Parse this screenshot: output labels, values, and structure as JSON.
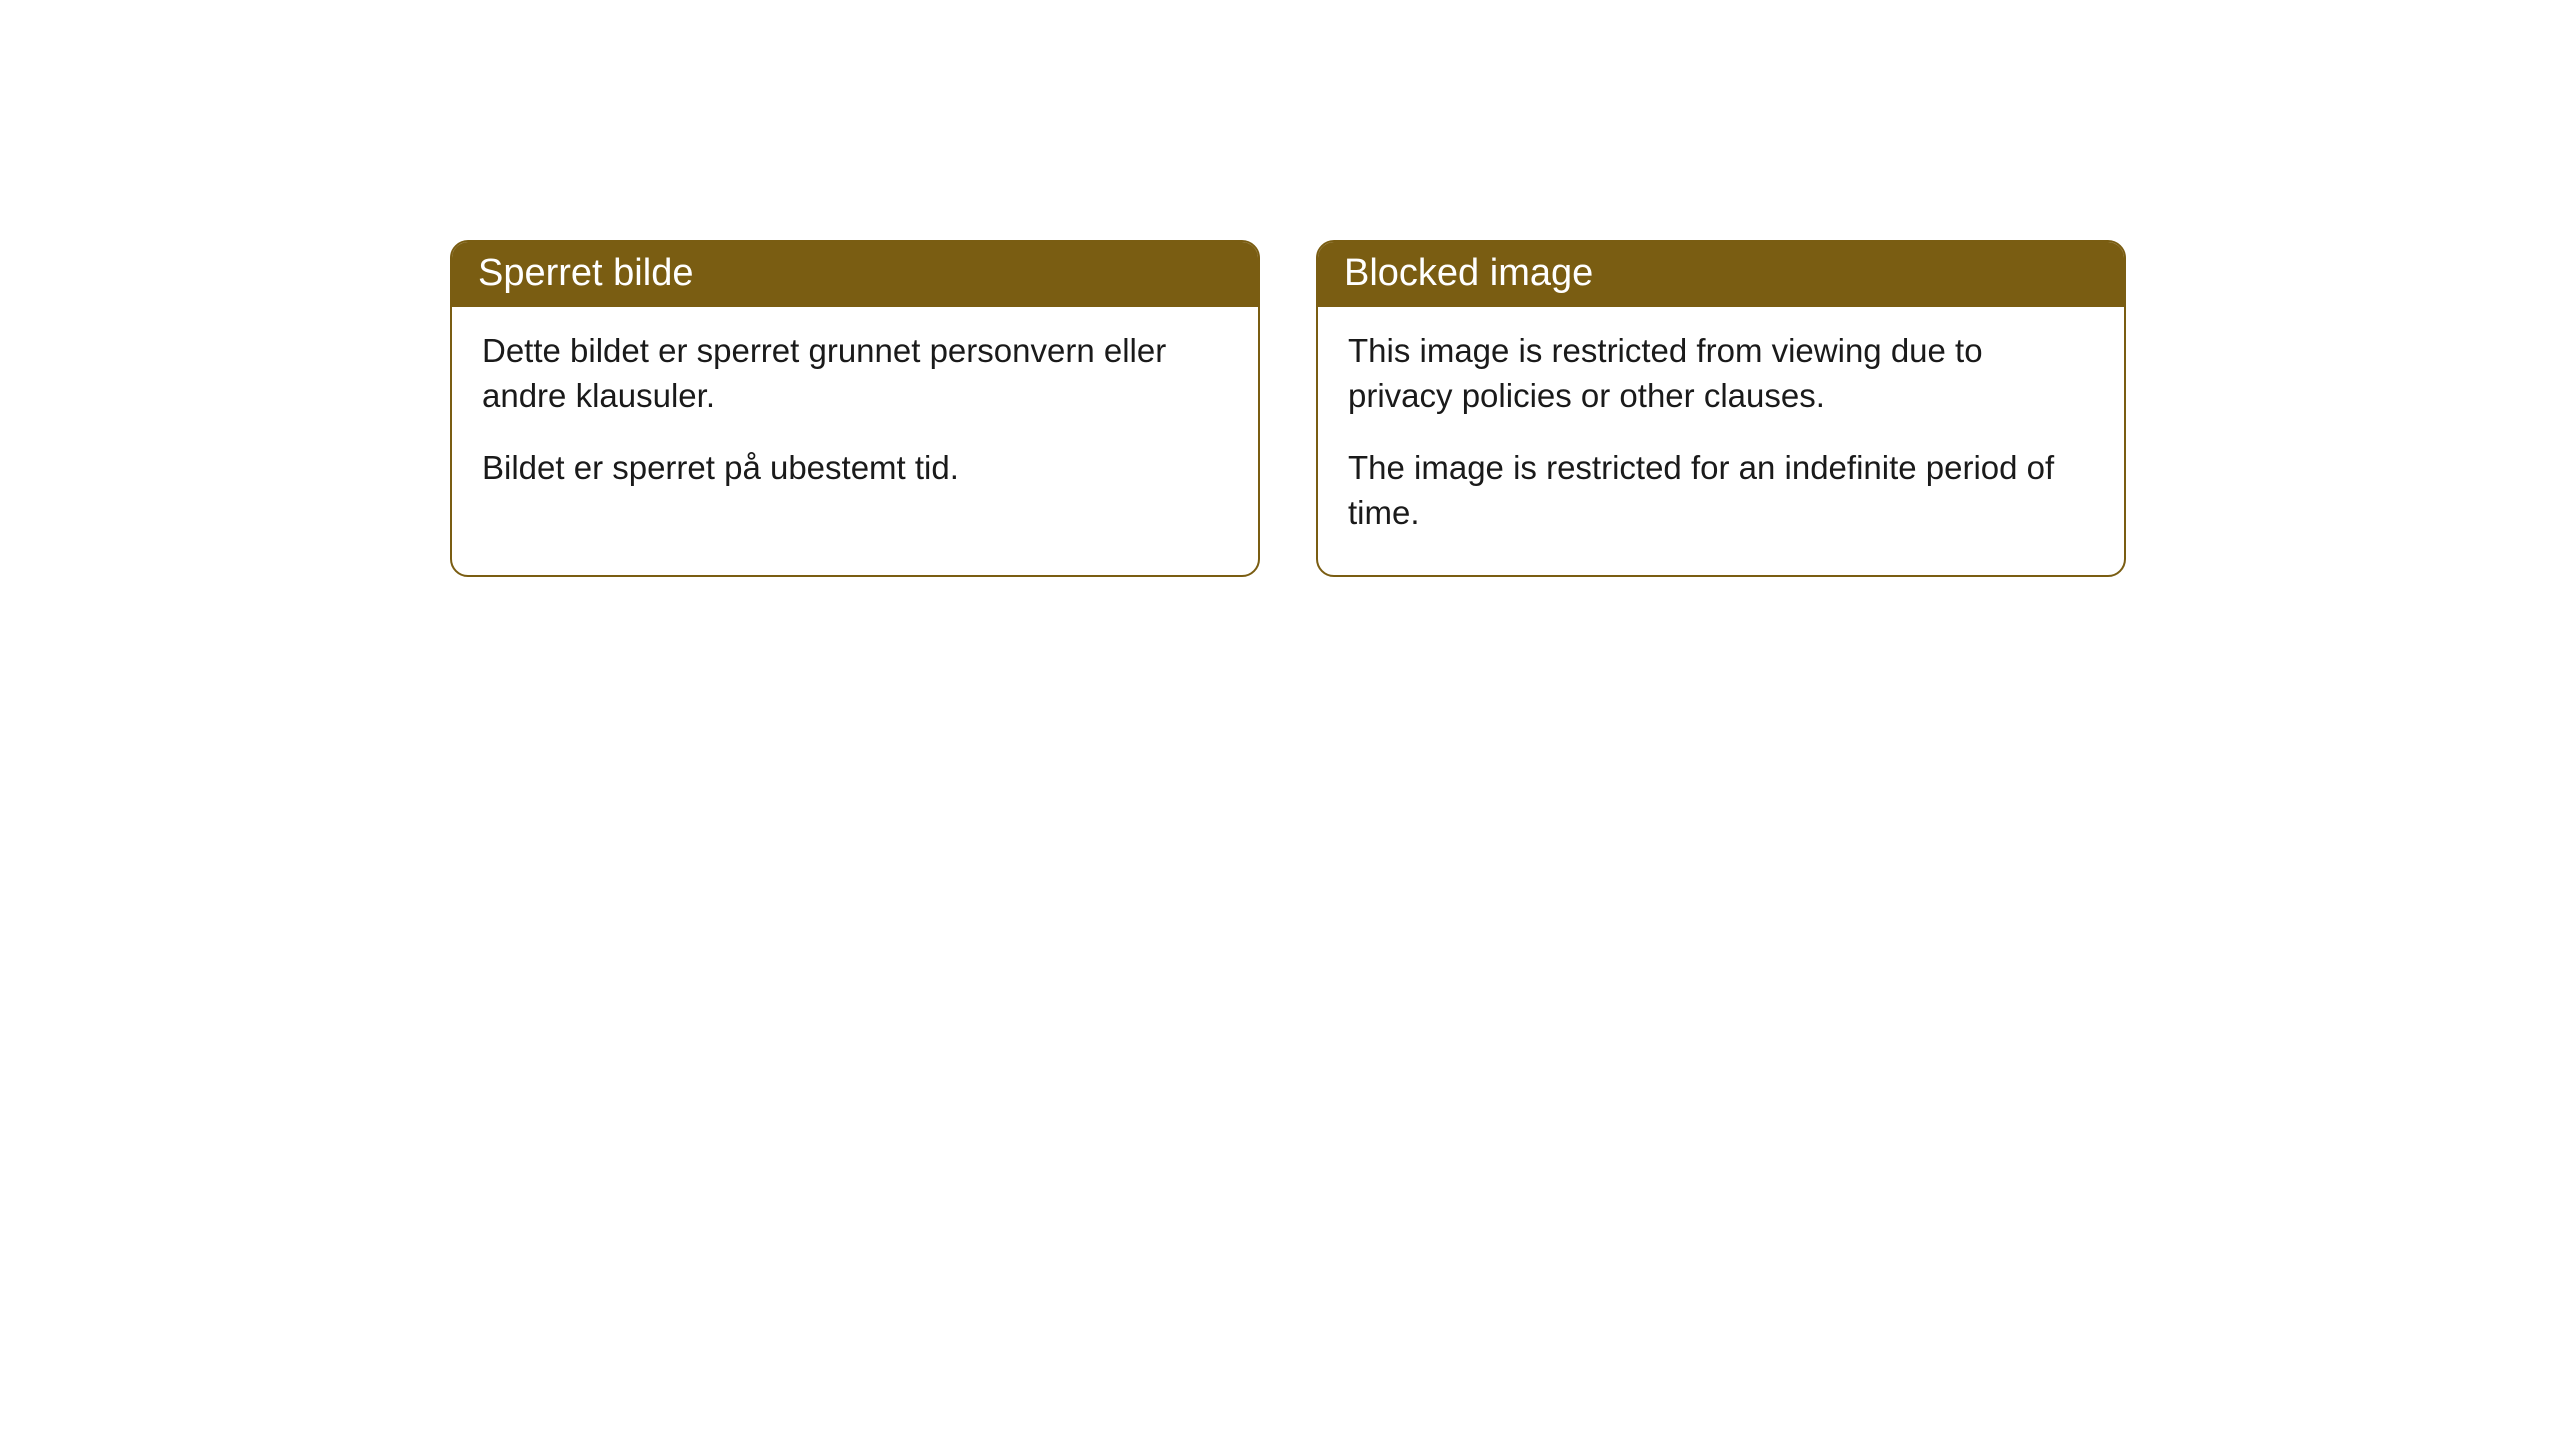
{
  "cards": [
    {
      "title": "Sperret bilde",
      "paragraph1": "Dette bildet er sperret grunnet personvern eller andre klausuler.",
      "paragraph2": "Bildet er sperret på ubestemt tid."
    },
    {
      "title": "Blocked image",
      "paragraph1": "This image is restricted from viewing due to privacy policies or other clauses.",
      "paragraph2": "The image is restricted for an indefinite period of time."
    }
  ],
  "styling": {
    "header_background": "#7a5d12",
    "header_text_color": "#ffffff",
    "body_background": "#ffffff",
    "body_text_color": "#1a1a1a",
    "border_color": "#7a5d12",
    "border_radius": 18,
    "title_fontsize": 38,
    "body_fontsize": 33
  }
}
